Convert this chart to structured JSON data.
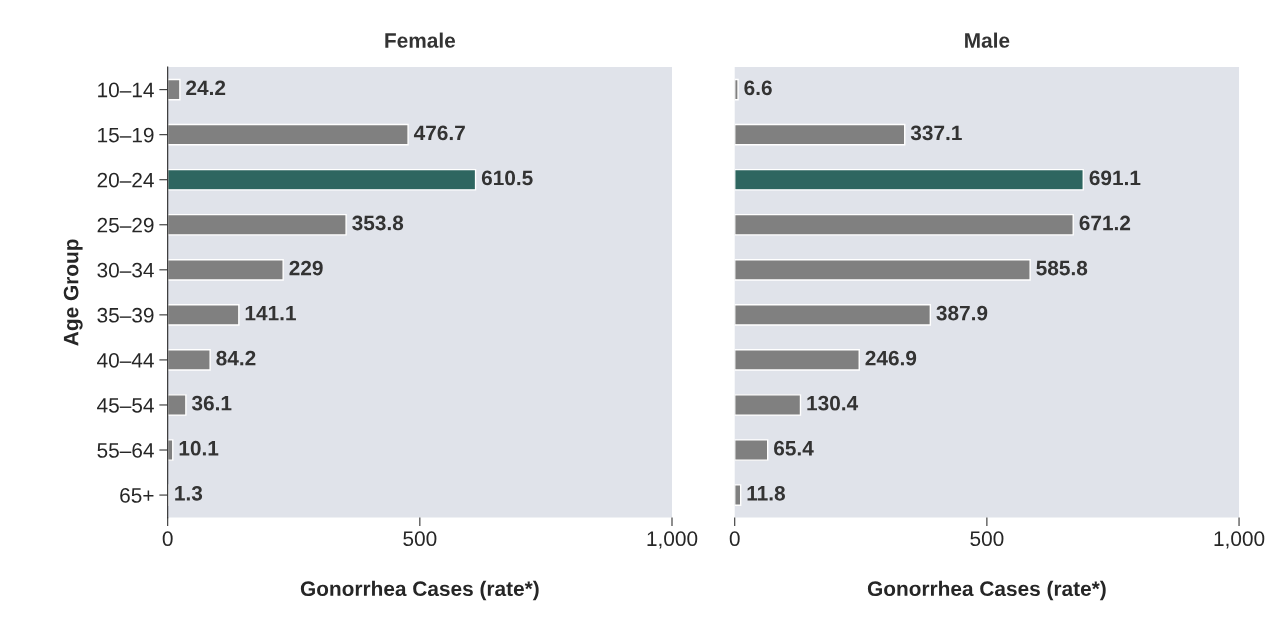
{
  "chart_data": [
    {
      "type": "bar",
      "orientation": "horizontal",
      "title": "Female",
      "xlabel": "Gonorrhea Cases (rate*)",
      "ylabel": "Age Group",
      "categories": [
        "10–14",
        "15–19",
        "20–24",
        "25–29",
        "30–34",
        "35–39",
        "40–44",
        "45–54",
        "55–64",
        "65+"
      ],
      "values": [
        24.2,
        476.7,
        610.5,
        353.8,
        229,
        141.1,
        84.2,
        36.1,
        10.1,
        1.3
      ],
      "colors": [
        "#808080",
        "#808080",
        "#2e6660",
        "#808080",
        "#808080",
        "#808080",
        "#808080",
        "#808080",
        "#808080",
        "#808080"
      ],
      "xlim": [
        0,
        1000
      ],
      "xticks": [
        0,
        500,
        {
          "value": 1000,
          "label": "1,000"
        }
      ],
      "data_labels": true,
      "grid": false
    },
    {
      "type": "bar",
      "orientation": "horizontal",
      "title": "Male",
      "xlabel": "Gonorrhea Cases (rate*)",
      "categories": [
        null,
        null,
        null,
        null,
        null,
        null,
        null,
        null,
        null,
        null
      ],
      "values": [
        6.6,
        337.1,
        691.1,
        671.2,
        585.8,
        387.9,
        246.9,
        130.4,
        65.4,
        11.8
      ],
      "colors": [
        "#808080",
        "#808080",
        "#2e6660",
        "#808080",
        "#808080",
        "#808080",
        "#808080",
        "#808080",
        "#808080",
        "#808080"
      ],
      "xlim": [
        0,
        1000
      ],
      "xticks": [
        0,
        500,
        {
          "value": 1000,
          "label": "1,000"
        }
      ],
      "data_labels": true,
      "grid": false,
      "tick_labels": "x"
    }
  ]
}
